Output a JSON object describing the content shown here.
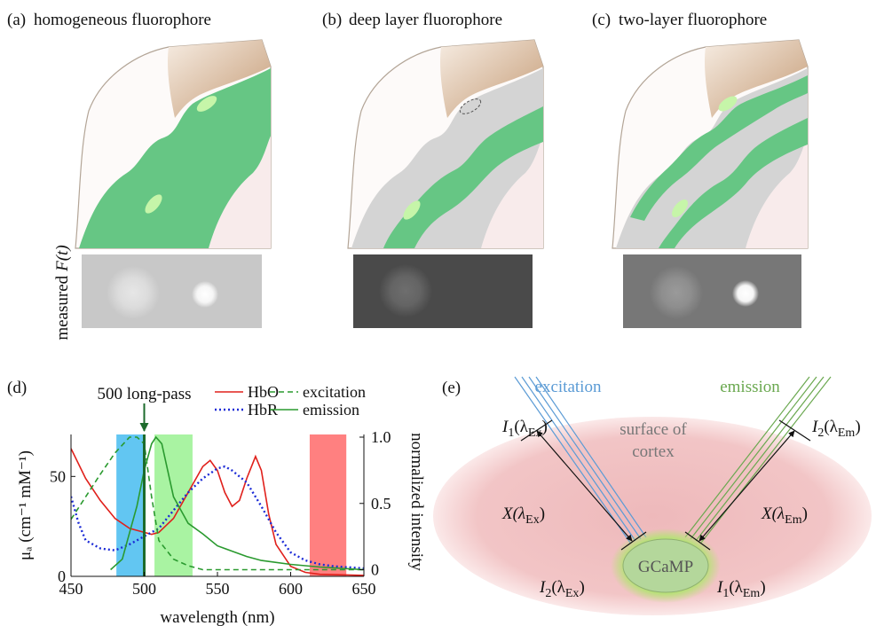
{
  "panels": [
    {
      "label": "(a)",
      "title": "homogeneous fluorophore"
    },
    {
      "label": "(b)",
      "title": "deep layer fluorophore"
    },
    {
      "label": "(c)",
      "title": "two-layer fluorophore"
    }
  ],
  "measured_label": {
    "text": "measured",
    "symbol": "F(t)"
  },
  "chart_data": {
    "type": "line",
    "panel_label": "(d)",
    "xlabel": "wavelength (nm)",
    "ylabel": "μₐ (cm⁻¹ mM⁻¹)",
    "y2label": "normalized intensity",
    "xlim": [
      450,
      650
    ],
    "xticks": [
      450,
      500,
      550,
      600,
      650
    ],
    "ylim": [
      0,
      71
    ],
    "yticks": [
      0,
      50
    ],
    "y2lim": [
      -0.05,
      1.02
    ],
    "y2ticks": [
      0,
      0.5,
      {
        "value": 1,
        "label": "1.0"
      }
    ],
    "bands": [
      {
        "from": 481,
        "to": 500,
        "color": "#62c6f2"
      },
      {
        "from": 507,
        "to": 533,
        "color": "#a9f3a2"
      },
      {
        "from": 613,
        "to": 638,
        "color": "#ff8080"
      }
    ],
    "longpass": {
      "label": "500 long-pass",
      "value": 500,
      "color": "#1d6b2c"
    },
    "series": [
      {
        "name": "HbO",
        "color": "#e0201b",
        "style": "solid",
        "axis": "y",
        "x": [
          450,
          460,
          470,
          480,
          490,
          500,
          505,
          510,
          520,
          530,
          540,
          545,
          550,
          555,
          560,
          565,
          570,
          576,
          580,
          585,
          590,
          600,
          610,
          620,
          650
        ],
        "values": [
          64,
          49,
          38,
          29,
          24,
          22,
          21,
          22,
          29,
          42,
          55,
          58,
          53,
          42,
          35,
          38,
          49,
          60,
          53,
          31,
          16,
          5,
          2,
          1,
          0.5
        ]
      },
      {
        "name": "HbR",
        "color": "#1c2bd6",
        "style": "dotted",
        "axis": "y",
        "x": [
          450,
          455,
          460,
          470,
          480,
          490,
          500,
          510,
          520,
          530,
          540,
          550,
          555,
          560,
          570,
          580,
          590,
          600,
          610,
          620,
          630,
          650
        ],
        "values": [
          40,
          27,
          18,
          14,
          13,
          16,
          20,
          24,
          33,
          42,
          49,
          54,
          55,
          53,
          47,
          35,
          22,
          12,
          8,
          6,
          5,
          4
        ]
      },
      {
        "name": "excitation",
        "color": "#2a9a2f",
        "style": "dashed",
        "axis": "y2",
        "x": [
          450,
          460,
          470,
          480,
          490,
          495,
          500,
          505,
          510,
          520,
          530,
          540,
          650
        ],
        "values": [
          0.38,
          0.55,
          0.72,
          0.88,
          1.0,
          1.0,
          0.95,
          0.55,
          0.22,
          0.08,
          0.03,
          0,
          0
        ]
      },
      {
        "name": "emission",
        "color": "#2a9a2f",
        "style": "solid",
        "axis": "y2",
        "x": [
          477,
          485,
          490,
          495,
          500,
          505,
          508,
          512,
          520,
          530,
          540,
          550,
          560,
          570,
          580,
          600,
          620,
          650
        ],
        "values": [
          0,
          0.08,
          0.28,
          0.48,
          0.75,
          0.95,
          1.0,
          0.95,
          0.55,
          0.35,
          0.27,
          0.18,
          0.14,
          0.1,
          0.07,
          0.04,
          0.02,
          0
        ]
      }
    ]
  },
  "diagram": {
    "panel_label": "(e)",
    "excitation": "excitation",
    "emission": "emission",
    "surface": [
      "surface of",
      "cortex"
    ],
    "target": "GCaMP",
    "labels": [
      {
        "parts": [
          "I",
          "1",
          "(λ",
          "Ex",
          ")"
        ]
      },
      {
        "parts": [
          "X(λ",
          "Ex",
          ")"
        ]
      },
      {
        "parts": [
          "I",
          "2",
          "(λ",
          "Ex",
          ")"
        ]
      },
      {
        "parts": [
          "I",
          "1",
          "(λ",
          "Em",
          ")"
        ]
      },
      {
        "parts": [
          "X(λ",
          "Em",
          ")"
        ]
      },
      {
        "parts": [
          "I",
          "2",
          "(λ",
          "Em",
          ")"
        ]
      }
    ]
  }
}
